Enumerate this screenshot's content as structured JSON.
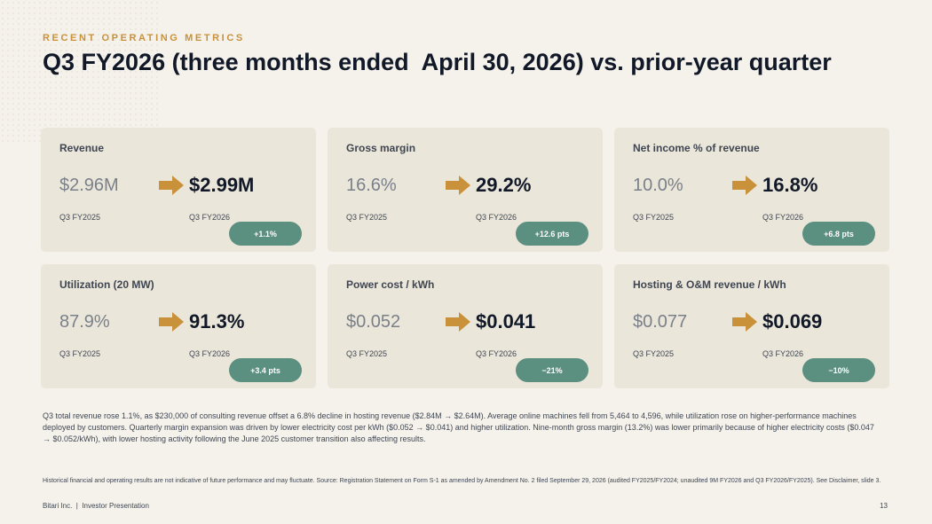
{
  "header": {
    "eyebrow": "RECENT OPERATING METRICS",
    "title": "Q3 FY2026 (three months ended  April 30, 2026) vs. prior-year quarter"
  },
  "colors": {
    "accent": "#c8913a",
    "badge": "#5b8f80",
    "card": "#ebe6da",
    "background": "#f5f2ec"
  },
  "metrics": [
    {
      "label": "Revenue",
      "prior": "$2.96M",
      "current": "$2.99M",
      "prior_period": "Q3 FY2025",
      "current_period": "Q3 FY2026",
      "change": "+1.1%"
    },
    {
      "label": "Gross margin",
      "prior": "16.6%",
      "current": "29.2%",
      "prior_period": "Q3 FY2025",
      "current_period": "Q3 FY2026",
      "change": "+12.6 pts"
    },
    {
      "label": "Net income % of revenue",
      "prior": "10.0%",
      "current": "16.8%",
      "prior_period": "Q3 FY2025",
      "current_period": "Q3 FY2026",
      "change": "+6.8 pts"
    },
    {
      "label": "Utilization (20 MW)",
      "prior": "87.9%",
      "current": "91.3%",
      "prior_period": "Q3 FY2025",
      "current_period": "Q3 FY2026",
      "change": "+3.4 pts"
    },
    {
      "label": "Power cost / kWh",
      "prior": "$0.052",
      "current": "$0.041",
      "prior_period": "Q3 FY2025",
      "current_period": "Q3 FY2026",
      "change": "−21%"
    },
    {
      "label": "Hosting & O&M revenue / kWh",
      "prior": "$0.077",
      "current": "$0.069",
      "prior_period": "Q3 FY2025",
      "current_period": "Q3 FY2026",
      "change": "−10%"
    }
  ],
  "arrow_icon": "right-arrow-icon",
  "commentary": "Q3 total revenue rose 1.1%, as $230,000 of consulting revenue offset a 6.8% decline in hosting revenue ($2.84M → $2.64M). Average online machines fell from 5,464 to 4,596, while utilization rose on higher-performance machines deployed by customers. Quarterly margin expansion was driven by lower electricity cost per kWh ($0.052 → $0.041) and higher utilization. Nine-month gross margin (13.2%) was lower primarily because of higher electricity costs ($0.047 → $0.052/kWh), with lower hosting activity following the June 2025 customer transition also affecting results.",
  "disclaimer": "Historical financial and operating results are not indicative of future performance and may fluctuate. Source: Registration Statement on Form S-1 as amended by Amendment No. 2 filed September 29, 2026 (audited FY2025/FY2024; unaudited 9M FY2026 and Q3 FY2026/FY2025). See Disclaimer, slide 3.",
  "footer": {
    "left": "Bitari Inc.  |  Investor Presentation",
    "page": "13"
  }
}
